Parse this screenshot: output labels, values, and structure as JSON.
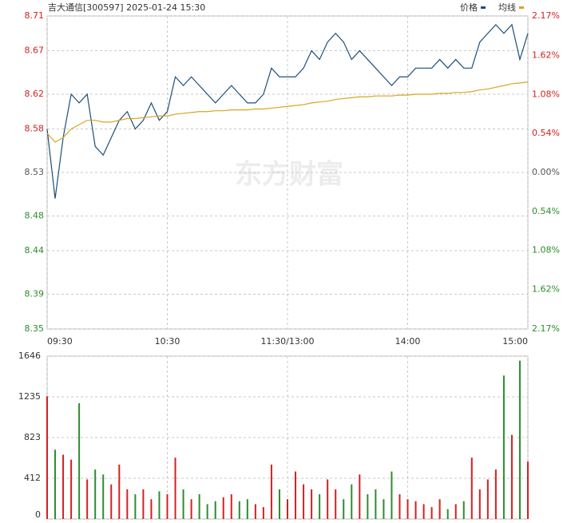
{
  "chart_data": {
    "type": "intraday",
    "title": "吉大通信[300597] 2025-01-24 15:30",
    "watermark": "东方财富",
    "xlim": [
      0,
      60
    ],
    "xticks": [
      {
        "value": 0,
        "label": "09:30"
      },
      {
        "value": 15,
        "label": "10:30"
      },
      {
        "value": 30,
        "label": "11:30/13:00"
      },
      {
        "value": 45,
        "label": "14:00"
      },
      {
        "value": 60,
        "label": "15:00"
      }
    ],
    "ylim": [
      8.35,
      8.71
    ],
    "yticks": [
      8.71,
      8.67,
      8.62,
      8.58,
      8.53,
      8.48,
      8.44,
      8.39,
      8.35
    ],
    "y2lim": [
      -2.17,
      2.17
    ],
    "y2ticks": [
      {
        "value": 2.17,
        "label": "2.17%"
      },
      {
        "value": 1.62,
        "label": "1.62%"
      },
      {
        "value": 1.08,
        "label": "1.08%"
      },
      {
        "value": 0.54,
        "label": "0.54%"
      },
      {
        "value": 0,
        "label": "0.00%"
      },
      {
        "value": -0.54,
        "label": "0.54%"
      },
      {
        "value": -1.08,
        "label": "1.08%"
      },
      {
        "value": -1.62,
        "label": "1.62%"
      },
      {
        "value": -2.17,
        "label": "2.17%"
      }
    ],
    "grid": true,
    "legend": "top-right",
    "series": [
      {
        "name": "价格",
        "color": "#1c4f7c",
        "values": [
          8.58,
          8.5,
          8.57,
          8.62,
          8.61,
          8.62,
          8.56,
          8.55,
          8.57,
          8.59,
          8.6,
          8.58,
          8.59,
          8.61,
          8.59,
          8.6,
          8.64,
          8.63,
          8.64,
          8.63,
          8.62,
          8.61,
          8.62,
          8.63,
          8.62,
          8.61,
          8.61,
          8.62,
          8.65,
          8.64,
          8.64,
          8.64,
          8.65,
          8.67,
          8.66,
          8.68,
          8.69,
          8.68,
          8.66,
          8.67,
          8.66,
          8.65,
          8.64,
          8.63,
          8.64,
          8.64,
          8.65,
          8.65,
          8.65,
          8.66,
          8.65,
          8.66,
          8.65,
          8.65,
          8.68,
          8.69,
          8.7,
          8.69,
          8.7,
          8.66,
          8.69
        ]
      },
      {
        "name": "均线",
        "color": "#d8a520",
        "values": [
          8.575,
          8.565,
          8.57,
          8.58,
          8.585,
          8.59,
          8.59,
          8.588,
          8.588,
          8.59,
          8.592,
          8.592,
          8.593,
          8.594,
          8.595,
          8.595,
          8.597,
          8.598,
          8.599,
          8.6,
          8.6,
          8.601,
          8.601,
          8.602,
          8.602,
          8.602,
          8.603,
          8.603,
          8.604,
          8.605,
          8.606,
          8.607,
          8.608,
          8.61,
          8.611,
          8.612,
          8.614,
          8.615,
          8.616,
          8.617,
          8.617,
          8.618,
          8.618,
          8.618,
          8.619,
          8.619,
          8.62,
          8.62,
          8.62,
          8.621,
          8.621,
          8.622,
          8.622,
          8.623,
          8.625,
          8.626,
          8.628,
          8.63,
          8.632,
          8.633,
          8.634
        ]
      }
    ],
    "volume": {
      "ylim": [
        0,
        1646
      ],
      "yticks": [
        0,
        412,
        823,
        1235,
        1646
      ],
      "values": [
        1240,
        700,
        650,
        600,
        1170,
        400,
        500,
        450,
        350,
        550,
        300,
        250,
        300,
        200,
        280,
        250,
        620,
        300,
        200,
        250,
        150,
        180,
        220,
        250,
        180,
        200,
        150,
        120,
        550,
        300,
        200,
        480,
        350,
        300,
        250,
        400,
        300,
        200,
        350,
        450,
        250,
        300,
        200,
        480,
        250,
        200,
        180,
        150,
        120,
        200,
        100,
        150,
        180,
        620,
        300,
        400,
        500,
        1450,
        850,
        1600,
        580
      ],
      "up_color": "#d42020",
      "down_color": "#2e8b2e"
    }
  }
}
